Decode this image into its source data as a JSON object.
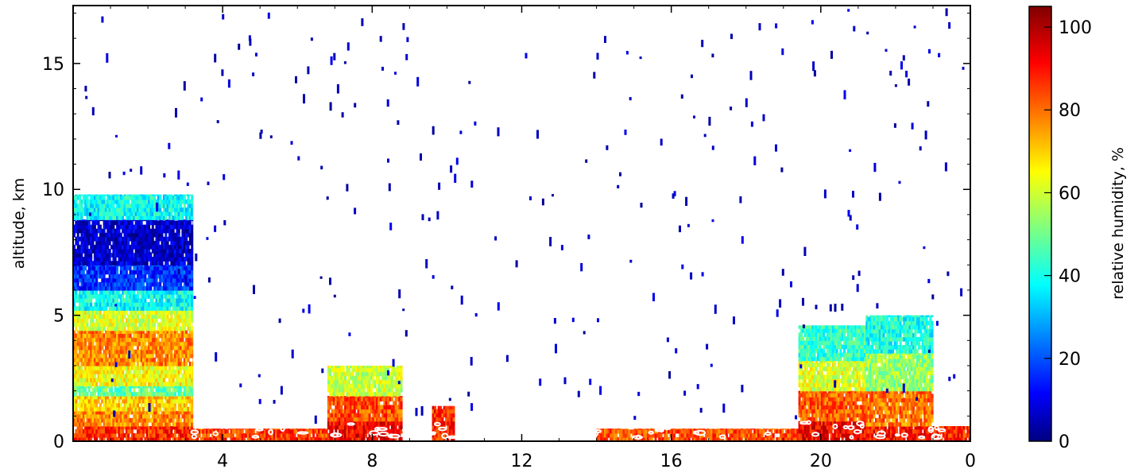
{
  "chart_data": {
    "type": "heatmap",
    "title": "",
    "xlabel": "",
    "ylabel": "altitude, km",
    "colorbar_label": "relative humidity, %",
    "x_tick_labels": [
      "4",
      "8",
      "12",
      "16",
      "20",
      "0"
    ],
    "x_tick_positions_hours": [
      4,
      8,
      12,
      16,
      20,
      24
    ],
    "xlim": [
      0,
      24
    ],
    "y_tick_labels": [
      "0",
      "5",
      "10",
      "15"
    ],
    "y_tick_values": [
      0,
      5,
      10,
      15
    ],
    "ylim": [
      0,
      17.3
    ],
    "colorbar_tick_labels": [
      "0",
      "20",
      "40",
      "60",
      "80",
      "100"
    ],
    "colorbar_tick_values": [
      0,
      20,
      40,
      60,
      80,
      100
    ],
    "colorbar_range": [
      0,
      105
    ],
    "colormap": "jet",
    "grid": false,
    "cloud_contour_color": "#ffffff",
    "regions": [
      {
        "x": [
          0.0,
          3.2
        ],
        "layers": [
          {
            "alt": [
              0.0,
              0.6
            ],
            "rh": 88
          },
          {
            "alt": [
              0.6,
              1.2
            ],
            "rh": 78
          },
          {
            "alt": [
              1.2,
              1.8
            ],
            "rh": 70
          },
          {
            "alt": [
              1.8,
              2.2
            ],
            "rh": 50
          },
          {
            "alt": [
              2.2,
              3.0
            ],
            "rh": 65
          },
          {
            "alt": [
              3.0,
              4.4
            ],
            "rh": 78
          },
          {
            "alt": [
              4.4,
              5.2
            ],
            "rh": 62
          },
          {
            "alt": [
              5.2,
              6.0
            ],
            "rh": 40
          },
          {
            "alt": [
              6.0,
              7.0
            ],
            "rh": 18
          },
          {
            "alt": [
              7.0,
              8.8
            ],
            "rh": 8
          },
          {
            "alt": [
              8.8,
              9.8
            ],
            "rh": 40
          }
        ]
      },
      {
        "x": [
          3.2,
          6.8
        ],
        "layers": [
          {
            "alt": [
              0.0,
              0.5
            ],
            "rh": 86
          }
        ]
      },
      {
        "x": [
          6.8,
          8.8
        ],
        "layers": [
          {
            "alt": [
              0.0,
              0.8
            ],
            "rh": 92
          },
          {
            "alt": [
              0.8,
              1.8
            ],
            "rh": 84
          },
          {
            "alt": [
              1.8,
              3.0
            ],
            "rh": 60
          }
        ]
      },
      {
        "x": [
          9.6,
          10.2
        ],
        "layers": [
          {
            "alt": [
              0.0,
              1.4
            ],
            "rh": 88
          }
        ]
      },
      {
        "x": [
          14.0,
          19.4
        ],
        "layers": [
          {
            "alt": [
              0.0,
              0.5
            ],
            "rh": 84
          }
        ]
      },
      {
        "x": [
          19.4,
          21.2
        ],
        "layers": [
          {
            "alt": [
              0.0,
              0.8
            ],
            "rh": 92
          },
          {
            "alt": [
              0.8,
              2.0
            ],
            "rh": 82
          },
          {
            "alt": [
              2.0,
              3.2
            ],
            "rh": 62
          },
          {
            "alt": [
              3.2,
              4.6
            ],
            "rh": 45
          }
        ]
      },
      {
        "x": [
          21.2,
          23.0
        ],
        "layers": [
          {
            "alt": [
              0.0,
              0.6
            ],
            "rh": 90
          },
          {
            "alt": [
              0.6,
              2.0
            ],
            "rh": 80
          },
          {
            "alt": [
              2.0,
              3.5
            ],
            "rh": 55
          },
          {
            "alt": [
              3.5,
              5.0
            ],
            "rh": 42
          }
        ]
      },
      {
        "x": [
          23.0,
          24.0
        ],
        "layers": [
          {
            "alt": [
              0.0,
              0.6
            ],
            "rh": 88
          }
        ]
      }
    ],
    "scatter_rh": 2
  }
}
